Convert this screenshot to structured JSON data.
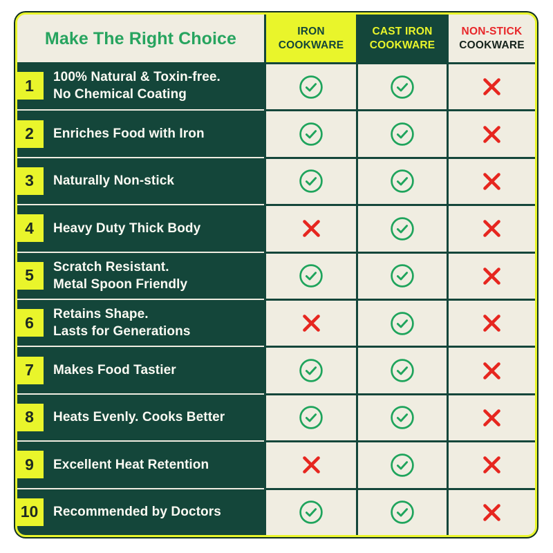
{
  "title": "Make The Right Choice",
  "columns": [
    {
      "line1": "IRON",
      "line2": "COOKWARE"
    },
    {
      "line1": "CAST IRON",
      "line2": "COOKWARE"
    },
    {
      "line1": "NON-STICK",
      "line2": "COOKWARE"
    }
  ],
  "rows": [
    {
      "num": "1",
      "feature": [
        "100% Natural & Toxin-free.",
        "No Chemical Coating"
      ],
      "iron": "check",
      "cast_iron": "check",
      "non_stick": "cross"
    },
    {
      "num": "2",
      "feature": [
        "Enriches Food with Iron"
      ],
      "iron": "check",
      "cast_iron": "check",
      "non_stick": "cross"
    },
    {
      "num": "3",
      "feature": [
        "Naturally Non-stick"
      ],
      "iron": "check",
      "cast_iron": "check",
      "non_stick": "cross"
    },
    {
      "num": "4",
      "feature": [
        "Heavy Duty Thick Body"
      ],
      "iron": "cross",
      "cast_iron": "check",
      "non_stick": "cross"
    },
    {
      "num": "5",
      "feature": [
        "Scratch Resistant.",
        "Metal Spoon Friendly"
      ],
      "iron": "check",
      "cast_iron": "check",
      "non_stick": "cross"
    },
    {
      "num": "6",
      "feature": [
        "Retains Shape.",
        "Lasts for Generations"
      ],
      "iron": "cross",
      "cast_iron": "check",
      "non_stick": "cross"
    },
    {
      "num": "7",
      "feature": [
        "Makes Food Tastier"
      ],
      "iron": "check",
      "cast_iron": "check",
      "non_stick": "cross"
    },
    {
      "num": "8",
      "feature": [
        "Heats Evenly. Cooks Better"
      ],
      "iron": "check",
      "cast_iron": "check",
      "non_stick": "cross"
    },
    {
      "num": "9",
      "feature": [
        "Excellent Heat Retention"
      ],
      "iron": "cross",
      "cast_iron": "check",
      "non_stick": "cross"
    },
    {
      "num": "10",
      "feature": [
        "Recommended by Doctors"
      ],
      "iron": "check",
      "cast_iron": "check",
      "non_stick": "cross"
    }
  ],
  "icons": {
    "check": "check-circle-icon",
    "cross": "cross-icon"
  },
  "colors": {
    "dark_green": "#14463a",
    "accent_yellow": "#e9f52b",
    "cream": "#f0ede1",
    "check_green": "#1fa45c",
    "cross_red": "#e6261f",
    "title_green": "#27a45f",
    "nonstick_red": "#e8272a"
  }
}
